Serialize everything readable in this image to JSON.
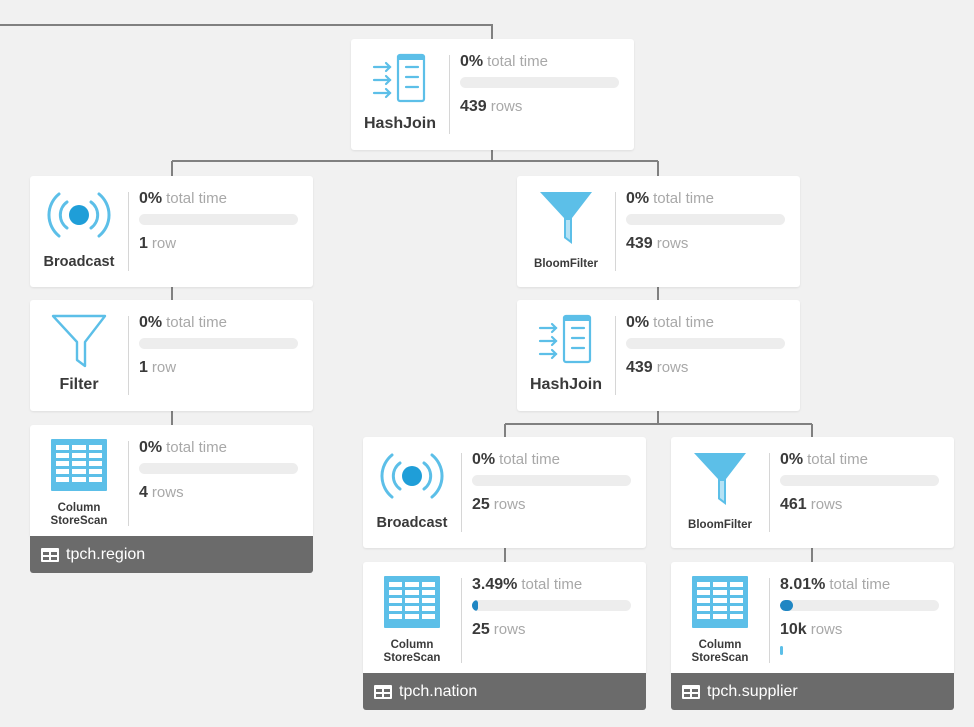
{
  "colors": {
    "icon_blue": "#5cbfe8",
    "bar_fill": "#1f86c3",
    "edge": "#808080",
    "table_bg": "#6b6b6b"
  },
  "nodes": {
    "hashjoin_top": {
      "operator": "HashJoin",
      "icon": "hash-join-icon",
      "time_value": "0%",
      "time_unit": "total time",
      "time_fraction": 0,
      "rows_value": "439",
      "rows_unit": "rows"
    },
    "broadcast_left": {
      "operator": "Broadcast",
      "icon": "broadcast-icon",
      "time_value": "0%",
      "time_unit": "total time",
      "time_fraction": 0,
      "rows_value": "1",
      "rows_unit": "row"
    },
    "filter_left": {
      "operator": "Filter",
      "icon": "filter-icon",
      "time_value": "0%",
      "time_unit": "total time",
      "time_fraction": 0,
      "rows_value": "1",
      "rows_unit": "row"
    },
    "scan_region": {
      "operator_line1": "Column",
      "operator_line2": "StoreScan",
      "icon": "columnstore-scan-icon",
      "time_value": "0%",
      "time_unit": "total time",
      "time_fraction": 0,
      "rows_value": "4",
      "rows_unit": "rows",
      "table": "tpch.region"
    },
    "bloom_right": {
      "operator": "BloomFilter",
      "icon": "bloom-filter-icon",
      "time_value": "0%",
      "time_unit": "total time",
      "time_fraction": 0,
      "rows_value": "439",
      "rows_unit": "rows"
    },
    "hashjoin_mid": {
      "operator": "HashJoin",
      "icon": "hash-join-icon",
      "time_value": "0%",
      "time_unit": "total time",
      "time_fraction": 0,
      "rows_value": "439",
      "rows_unit": "rows"
    },
    "broadcast_nation": {
      "operator": "Broadcast",
      "icon": "broadcast-icon",
      "time_value": "0%",
      "time_unit": "total time",
      "time_fraction": 0,
      "rows_value": "25",
      "rows_unit": "rows"
    },
    "bloom_supplier": {
      "operator": "BloomFilter",
      "icon": "bloom-filter-icon",
      "time_value": "0%",
      "time_unit": "total time",
      "time_fraction": 0,
      "rows_value": "461",
      "rows_unit": "rows"
    },
    "scan_nation": {
      "operator_line1": "Column",
      "operator_line2": "StoreScan",
      "icon": "columnstore-scan-icon",
      "time_value": "3.49%",
      "time_unit": "total time",
      "time_fraction": 0.0349,
      "rows_value": "25",
      "rows_unit": "rows",
      "table": "tpch.nation"
    },
    "scan_supplier": {
      "operator_line1": "Column",
      "operator_line2": "StoreScan",
      "icon": "columnstore-scan-icon",
      "time_value": "8.01%",
      "time_unit": "total time",
      "time_fraction": 0.0801,
      "rows_value": "10k",
      "rows_unit": "rows",
      "table": "tpch.supplier"
    }
  }
}
